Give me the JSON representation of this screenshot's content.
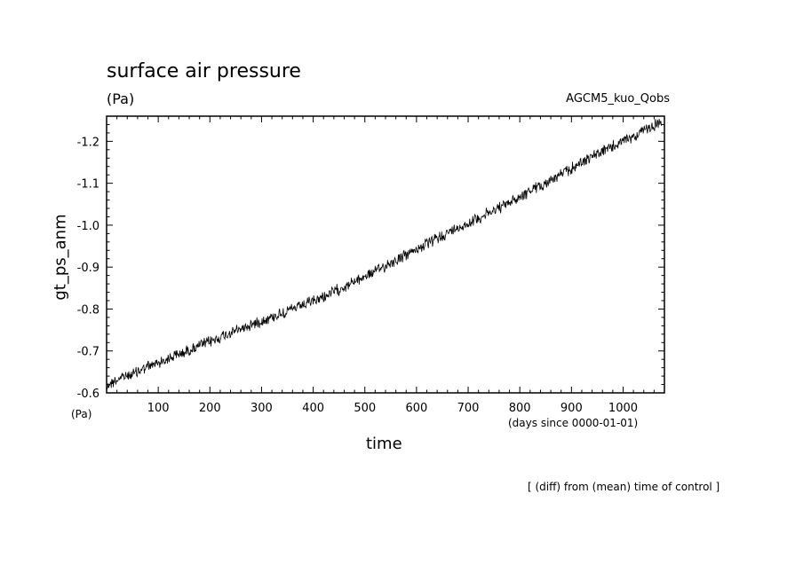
{
  "chart_data": {
    "type": "line",
    "title": "surface air pressure",
    "yunit": "(Pa)",
    "annotation_right": "AGCM5_kuo_Qobs",
    "xlabel": "time",
    "ylabel": "gt_ps_anm",
    "xunit_left": "(Pa)",
    "xunit_right": "(days since 0000-01-01)",
    "footnote": "[ (diff) from (mean) time of control ]",
    "xlim": [
      0,
      1080
    ],
    "ylim": [
      -0.6,
      -1.26
    ],
    "x_ticks": [
      100,
      200,
      300,
      400,
      500,
      600,
      700,
      800,
      900,
      1000
    ],
    "x_tick_labels": [
      "100",
      "200",
      "300",
      "400",
      "500",
      "600",
      "700",
      "800",
      "900",
      "1000"
    ],
    "y_ticks": [
      -0.6,
      -0.7,
      -0.8,
      -0.9,
      -1.0,
      -1.1,
      -1.2
    ],
    "y_tick_labels": [
      "-0.6",
      "-0.7",
      "-0.8",
      "-0.9",
      "-1.0",
      "-1.1",
      "-1.2"
    ],
    "grid": false,
    "series": [
      {
        "line_color": "#000000",
        "x": [
          0,
          25,
          50,
          75,
          100,
          125,
          150,
          175,
          200,
          225,
          250,
          275,
          300,
          325,
          350,
          375,
          400,
          425,
          450,
          475,
          500,
          525,
          550,
          575,
          600,
          625,
          650,
          675,
          700,
          725,
          750,
          775,
          800,
          825,
          850,
          875,
          900,
          925,
          950,
          975,
          1000,
          1025,
          1050,
          1075
        ],
        "y": [
          -0.617,
          -0.635,
          -0.645,
          -0.66,
          -0.672,
          -0.685,
          -0.697,
          -0.71,
          -0.722,
          -0.735,
          -0.748,
          -0.76,
          -0.772,
          -0.783,
          -0.795,
          -0.806,
          -0.818,
          -0.832,
          -0.847,
          -0.862,
          -0.878,
          -0.893,
          -0.91,
          -0.925,
          -0.943,
          -0.958,
          -0.975,
          -0.99,
          -1.005,
          -1.02,
          -1.035,
          -1.05,
          -1.068,
          -1.085,
          -1.1,
          -1.118,
          -1.135,
          -1.155,
          -1.17,
          -1.185,
          -1.2,
          -1.215,
          -1.232,
          -1.245
        ]
      }
    ]
  }
}
